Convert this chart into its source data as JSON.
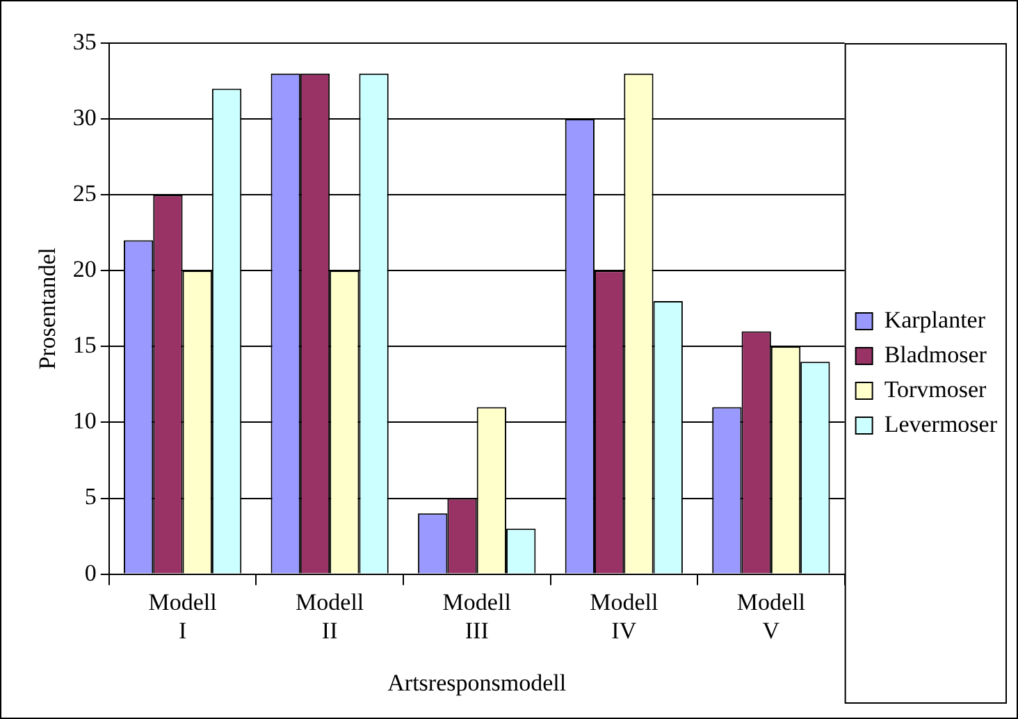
{
  "chart_data": {
    "type": "bar",
    "xlabel": "Artsresponsmodell",
    "ylabel": "Prosentandel",
    "categories": [
      "Modell I",
      "Modell II",
      "Modell III",
      "Modell IV",
      "Modell V"
    ],
    "series": [
      {
        "name": "Karplanter",
        "color": "#9999ff",
        "values": [
          22,
          33,
          4,
          30,
          11
        ]
      },
      {
        "name": "Bladmoser",
        "color": "#993366",
        "values": [
          25,
          33,
          5,
          20,
          16
        ]
      },
      {
        "name": "Torvmoser",
        "color": "#ffffcc",
        "values": [
          20,
          20,
          11,
          33,
          15
        ]
      },
      {
        "name": "Levermoser",
        "color": "#ccffff",
        "values": [
          32,
          33,
          3,
          18,
          14
        ]
      }
    ],
    "ylim": [
      0,
      35
    ],
    "yticks": [
      0,
      5,
      10,
      15,
      20,
      25,
      30,
      35
    ],
    "grid": "y",
    "legend": "right"
  }
}
